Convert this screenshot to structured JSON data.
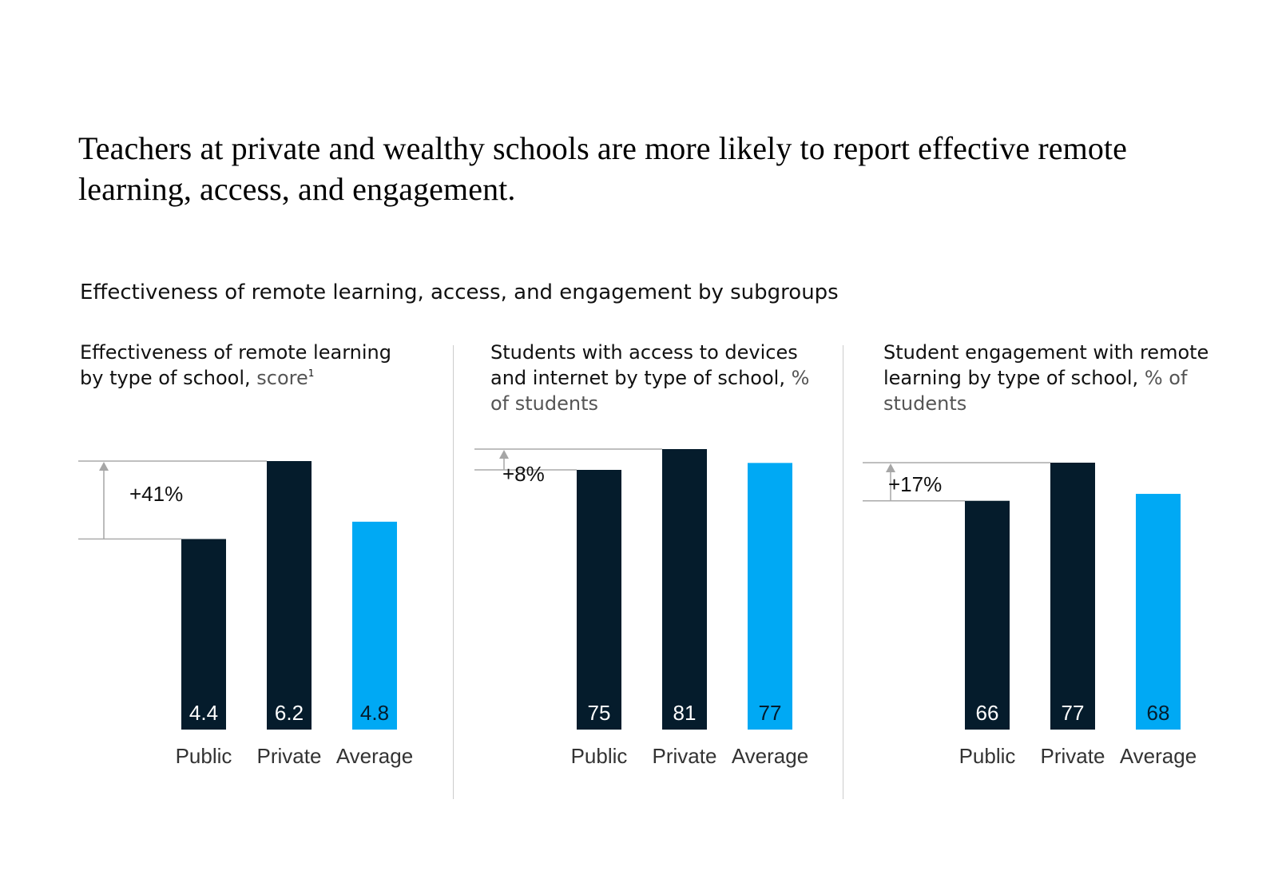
{
  "headline": "Teachers at private and wealthy schools are more likely to report effective remote learning, access, and engagement.",
  "subtitle": "Effectiveness of remote learning, access, and engagement by subgroups",
  "colors": {
    "dark": "#051c2c",
    "accent": "#00a9f4",
    "reference_line": "#aaaaaa",
    "arrow": "#a6a6a6"
  },
  "panels": [
    {
      "title_bold": "Effectiveness of remote learning by type of school,",
      "title_unit": "score",
      "footnote": "1"
    },
    {
      "title_bold": "Students with access to devices and internet by type of school,",
      "title_unit": "% of students",
      "footnote": ""
    },
    {
      "title_bold": "Student engagement with remote learning by type of school,",
      "title_unit": "% of students",
      "footnote": ""
    }
  ],
  "chart_data": [
    {
      "type": "bar",
      "categories": [
        "Public",
        "Private",
        "Average"
      ],
      "values": [
        4.4,
        6.2,
        4.8
      ],
      "value_labels": [
        "4.4",
        "6.2",
        "4.8"
      ],
      "bar_colors": [
        "#051c2c",
        "#051c2c",
        "#00a9f4"
      ],
      "difference_label": "+41%",
      "ylim": [
        0,
        6.2
      ]
    },
    {
      "type": "bar",
      "categories": [
        "Public",
        "Private",
        "Average"
      ],
      "values": [
        75,
        81,
        77
      ],
      "value_labels": [
        "75",
        "81",
        "77"
      ],
      "bar_colors": [
        "#051c2c",
        "#051c2c",
        "#00a9f4"
      ],
      "difference_label": "+8%",
      "ylim": [
        0,
        81
      ]
    },
    {
      "type": "bar",
      "categories": [
        "Public",
        "Private",
        "Average"
      ],
      "values": [
        66,
        77,
        68
      ],
      "value_labels": [
        "66",
        "77",
        "68"
      ],
      "bar_colors": [
        "#051c2c",
        "#051c2c",
        "#00a9f4"
      ],
      "difference_label": "+17%",
      "ylim": [
        0,
        77
      ]
    }
  ]
}
